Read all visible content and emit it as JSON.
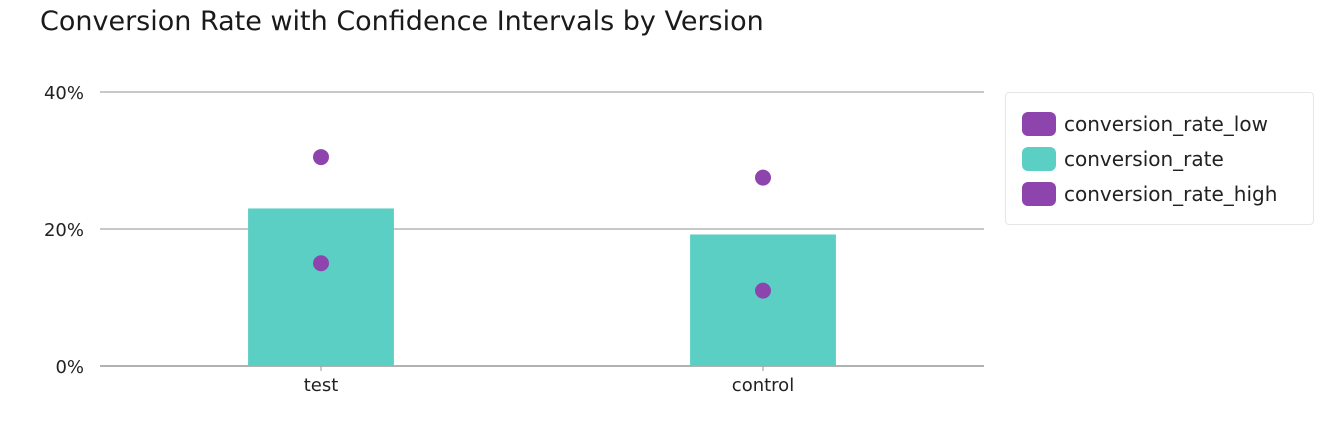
{
  "chart_data": {
    "type": "bar",
    "title": "Conversion Rate with Confidence Intervals by Version",
    "categories": [
      "test",
      "control"
    ],
    "series": [
      {
        "name": "conversion_rate_low",
        "mark": "point",
        "color": "#8e44ad",
        "values": [
          15,
          11
        ]
      },
      {
        "name": "conversion_rate",
        "mark": "bar",
        "color": "#5ccfc5",
        "values": [
          23,
          19.2
        ]
      },
      {
        "name": "conversion_rate_high",
        "mark": "point",
        "color": "#8e44ad",
        "values": [
          30.5,
          27.5
        ]
      }
    ],
    "ylim": [
      0,
      40
    ],
    "yticks": [
      0,
      20,
      40
    ],
    "ytick_labels": [
      "0%",
      "20%",
      "40%"
    ],
    "xlabel": "",
    "ylabel": "",
    "grid": true,
    "legend_position": "right"
  }
}
